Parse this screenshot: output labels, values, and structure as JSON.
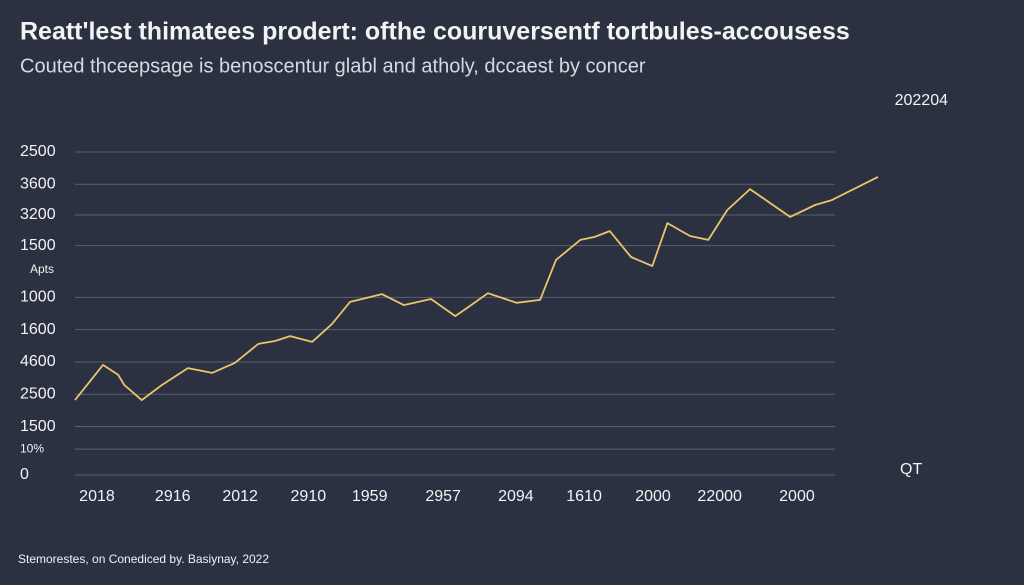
{
  "chart_data": {
    "type": "line",
    "title": "Reatt'lest thimatees prodert: ofthe couruversentf tortbules-accousess",
    "subtitle": "Couted thceepsage is benoscentur glabl and atholy, dccaest by concer",
    "annotation": "202204",
    "y_label": "Apts",
    "x_label": "QT",
    "footer": "Stemorestes, on Conediced by. Basiynay, 2022",
    "grid": true,
    "xlim": [
      0,
      106
    ],
    "ylim": [
      0,
      100
    ],
    "xticks": [
      {
        "value": 2.9,
        "label": "2018"
      },
      {
        "value": 12.9,
        "label": "2916"
      },
      {
        "value": 21.8,
        "label": "2012"
      },
      {
        "value": 30.8,
        "label": "2910"
      },
      {
        "value": 38.9,
        "label": "1959"
      },
      {
        "value": 48.6,
        "label": "2957"
      },
      {
        "value": 58.2,
        "label": "2094"
      },
      {
        "value": 67.2,
        "label": "1610"
      },
      {
        "value": 76.3,
        "label": "2000"
      },
      {
        "value": 85.1,
        "label": "22000"
      },
      {
        "value": 95.3,
        "label": "2000"
      }
    ],
    "yticks": [
      0,
      {
        "value": 8,
        "label": "10%"
      },
      {
        "value": 15,
        "label": "1500"
      },
      {
        "value": 25,
        "label": "2500"
      },
      {
        "value": 35,
        "label": "4600"
      },
      {
        "value": 45,
        "label": "1600"
      },
      {
        "value": 55,
        "label": "1000"
      },
      {
        "value": 71,
        "label": "1500"
      },
      {
        "value": 80.5,
        "label": "3200"
      },
      {
        "value": 90,
        "label": "3600"
      },
      {
        "value": 100,
        "label": "2500"
      }
    ],
    "series": [
      {
        "color": "#e8c56a",
        "x": [
          0,
          3.7,
          5.7,
          6.5,
          8.8,
          11.5,
          14.9,
          18.1,
          21.1,
          24.2,
          26.4,
          28.4,
          31.3,
          33.9,
          36.3,
          37.9,
          40.5,
          43.4,
          47.0,
          50.2,
          52.1,
          54.5,
          58.3,
          61.4,
          63.5,
          66.7,
          68.6,
          70.6,
          73.4,
          76.2,
          78.2,
          81.2,
          83.6,
          86.1,
          89.1,
          91.2,
          94.4,
          97.7,
          99.9,
          106
        ],
        "values": [
          23.2,
          34.1,
          31.0,
          27.9,
          23.2,
          27.9,
          33.1,
          31.6,
          34.7,
          40.6,
          41.5,
          43.0,
          41.2,
          46.7,
          53.6,
          54.5,
          56.0,
          52.6,
          54.5,
          49.2,
          52.3,
          56.3,
          53.3,
          54.2,
          66.6,
          72.8,
          73.7,
          75.5,
          67.5,
          64.7,
          78.0,
          74.0,
          72.8,
          82.0,
          88.5,
          85.1,
          79.9,
          83.6,
          85.1,
          92.3
        ]
      }
    ]
  }
}
